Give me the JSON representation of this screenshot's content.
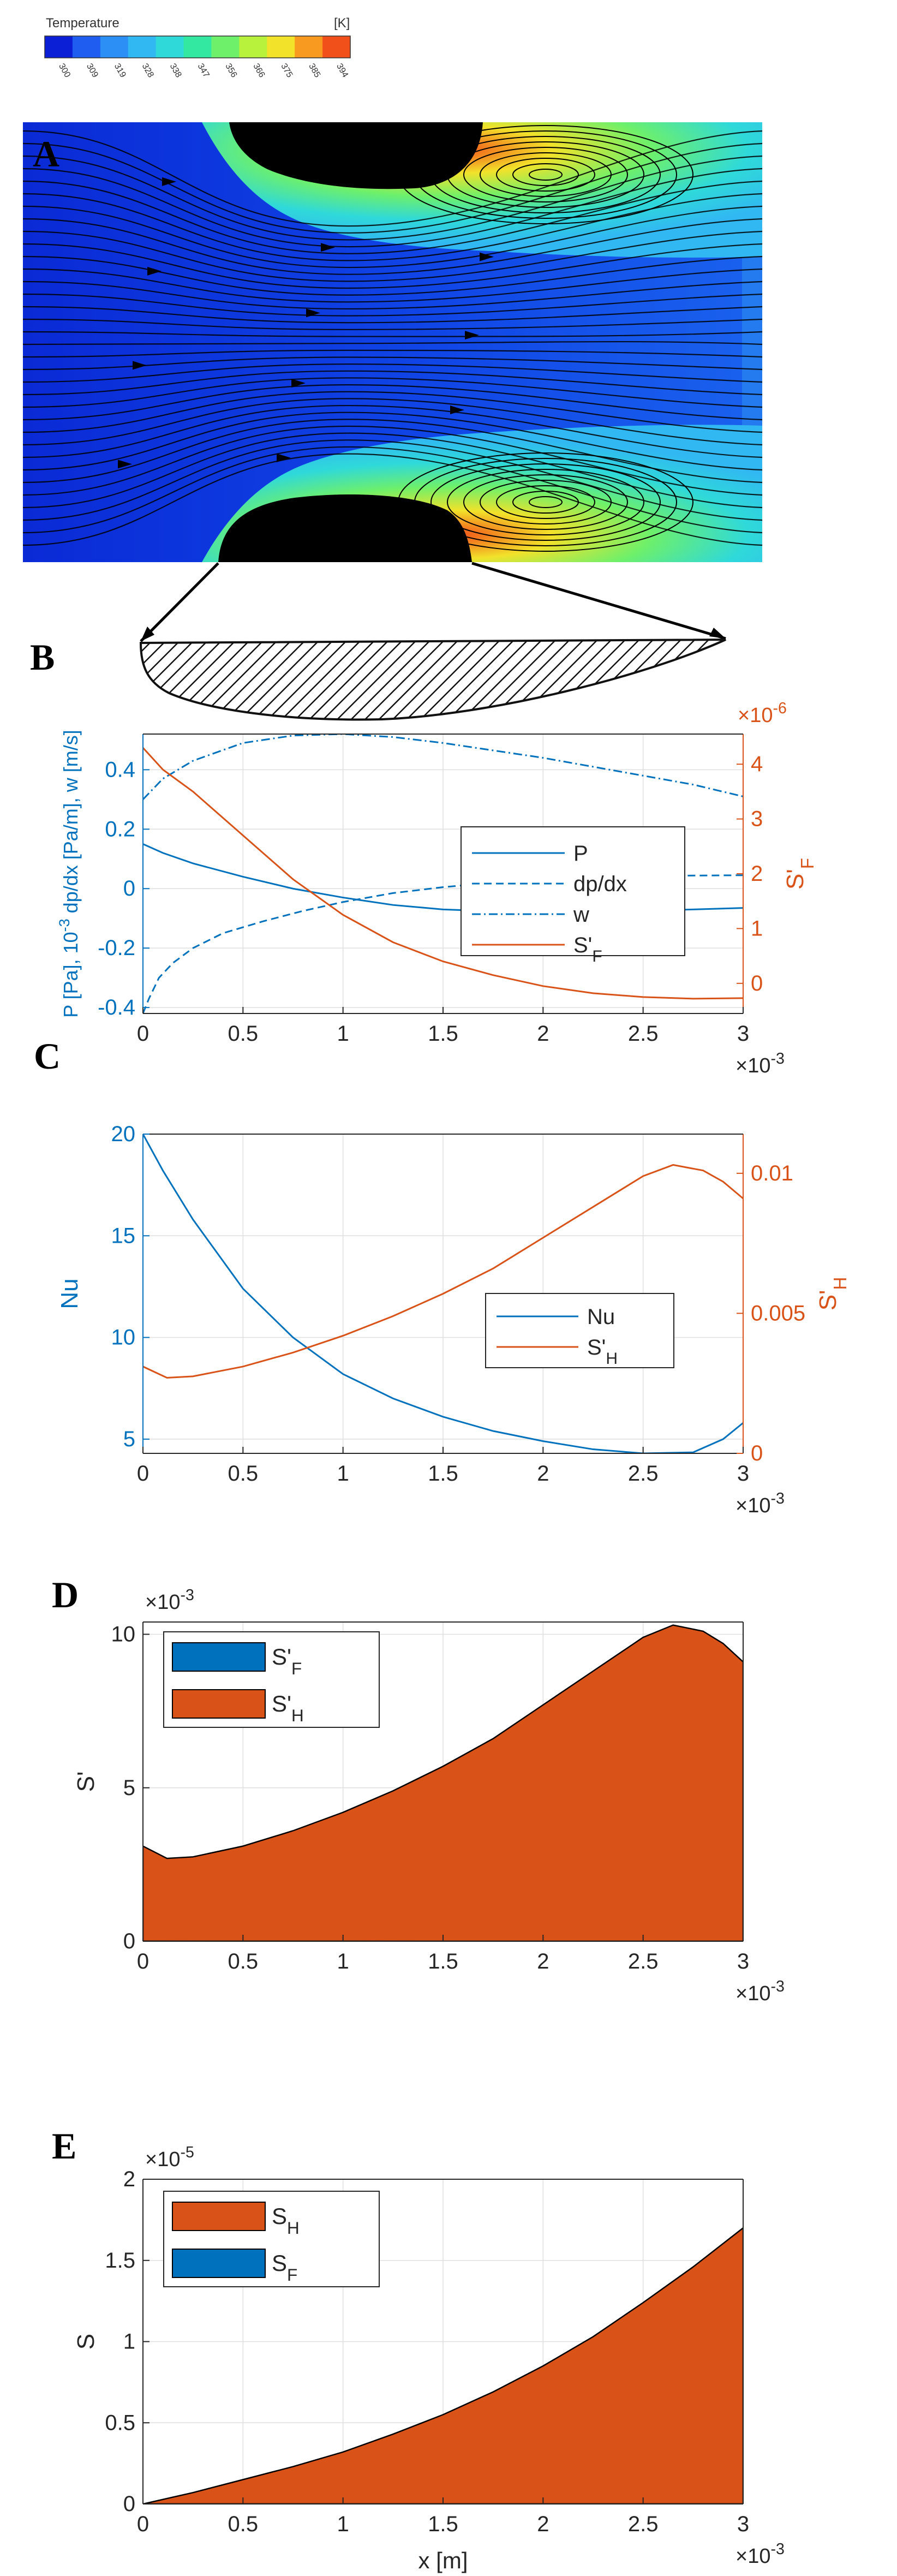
{
  "colorbar": {
    "title": "Temperature",
    "unit": "[K]",
    "ticks": [
      "300",
      "309",
      "319",
      "328",
      "338",
      "347",
      "356",
      "366",
      "375",
      "385",
      "394"
    ],
    "colors": [
      "#0a1fd6",
      "#1f5cf0",
      "#2b8ff5",
      "#31b8f2",
      "#2fd9d9",
      "#33e8a0",
      "#6ef06a",
      "#b8f23c",
      "#f2e22a",
      "#f79a1f",
      "#f2501a"
    ]
  },
  "colors": {
    "blue": "#0072bd",
    "orange": "#d95319",
    "fill_orange": "#d95319",
    "fill_blue": "#0072bd",
    "axis": "#262626",
    "grid": "#dfdfdf"
  },
  "panels": {
    "A": {
      "letter": "A"
    },
    "B": {
      "letter": "B"
    },
    "C": {
      "letter": "C"
    },
    "D": {
      "letter": "D"
    },
    "E": {
      "letter": "E"
    }
  },
  "chart_data": [
    {
      "id": "B",
      "type": "line",
      "ylabel": "P [Pa], 10^-3 dp/dx [Pa/m], w [m/s]",
      "ylabel_parts": [
        "P [Pa], 10",
        "-3",
        " dp/dx [Pa/m], w [m/s]"
      ],
      "y2label": "S'F",
      "xlim": [
        0,
        3
      ],
      "ylim": [
        -0.42,
        0.52
      ],
      "y2lim": [
        -0.55,
        4.55
      ],
      "x_exponent": "×10",
      "x_exponent_power": "-3",
      "y2_exponent": "×10",
      "y2_exponent_power": "-6",
      "xticks": [
        "0",
        "0.5",
        "1",
        "1.5",
        "2",
        "2.5",
        "3"
      ],
      "yticks": [
        "-0.4",
        "-0.2",
        "0",
        "0.2",
        "0.4"
      ],
      "y2ticks": [
        "0",
        "1",
        "2",
        "3",
        "4"
      ],
      "legend": [
        "P",
        "dp/dx",
        "w",
        "S'F"
      ],
      "series": [
        {
          "name": "P",
          "axis": "left",
          "style": "solid",
          "x": [
            0,
            0.1,
            0.25,
            0.5,
            0.75,
            1,
            1.25,
            1.5,
            1.75,
            2,
            2.25,
            2.5,
            2.75,
            3
          ],
          "y": [
            0.15,
            0.12,
            0.085,
            0.04,
            0.0,
            -0.03,
            -0.055,
            -0.07,
            -0.076,
            -0.078,
            -0.077,
            -0.074,
            -0.07,
            -0.065
          ]
        },
        {
          "name": "dp/dx",
          "axis": "left",
          "style": "dashed",
          "x": [
            0,
            0.03,
            0.08,
            0.15,
            0.25,
            0.4,
            0.6,
            0.8,
            1,
            1.25,
            1.5,
            1.75,
            2,
            2.25,
            2.5,
            2.75,
            3
          ],
          "y": [
            -0.42,
            -0.37,
            -0.3,
            -0.25,
            -0.2,
            -0.15,
            -0.11,
            -0.075,
            -0.045,
            -0.015,
            0.005,
            0.02,
            0.03,
            0.038,
            0.042,
            0.044,
            0.045
          ]
        },
        {
          "name": "w",
          "axis": "left",
          "style": "dashdot",
          "x": [
            0,
            0.1,
            0.25,
            0.5,
            0.75,
            1,
            1.25,
            1.5,
            1.75,
            2,
            2.25,
            2.5,
            2.75,
            3
          ],
          "y": [
            0.3,
            0.37,
            0.43,
            0.49,
            0.515,
            0.52,
            0.51,
            0.49,
            0.465,
            0.44,
            0.41,
            0.38,
            0.35,
            0.31
          ]
        },
        {
          "name": "S'F",
          "axis": "right",
          "style": "solid",
          "x": [
            0,
            0.1,
            0.25,
            0.5,
            0.75,
            1,
            1.25,
            1.5,
            1.75,
            2,
            2.25,
            2.5,
            2.75,
            3
          ],
          "y": [
            4.3,
            3.9,
            3.5,
            2.7,
            1.9,
            1.25,
            0.75,
            0.4,
            0.15,
            -0.05,
            -0.18,
            -0.25,
            -0.28,
            -0.27
          ]
        }
      ]
    },
    {
      "id": "C",
      "type": "line",
      "ylabel": "Nu",
      "y2label": "S'H",
      "xlim": [
        0,
        3
      ],
      "ylim": [
        4.3,
        20
      ],
      "y2lim": [
        0,
        0.0114
      ],
      "x_exponent": "×10",
      "x_exponent_power": "-3",
      "xticks": [
        "0",
        "0.5",
        "1",
        "1.5",
        "2",
        "2.5",
        "3"
      ],
      "yticks": [
        "5",
        "10",
        "15",
        "20"
      ],
      "y2ticks": [
        "0",
        "0.005",
        "0.01"
      ],
      "legend": [
        "Nu",
        "S'H"
      ],
      "series": [
        {
          "name": "Nu",
          "axis": "left",
          "style": "solid",
          "x": [
            0,
            0.1,
            0.25,
            0.5,
            0.75,
            1,
            1.25,
            1.5,
            1.75,
            2,
            2.25,
            2.5,
            2.75,
            2.9,
            3
          ],
          "y": [
            20,
            18.2,
            15.8,
            12.4,
            10.0,
            8.2,
            7.0,
            6.1,
            5.4,
            4.9,
            4.5,
            4.3,
            4.35,
            5.0,
            5.8
          ]
        },
        {
          "name": "S'H",
          "axis": "right",
          "style": "solid",
          "x": [
            0,
            0.12,
            0.25,
            0.5,
            0.75,
            1,
            1.25,
            1.5,
            1.75,
            2,
            2.25,
            2.5,
            2.65,
            2.8,
            2.9,
            3
          ],
          "y": [
            0.0031,
            0.0027,
            0.00275,
            0.0031,
            0.0036,
            0.0042,
            0.0049,
            0.0057,
            0.0066,
            0.0077,
            0.0088,
            0.0099,
            0.0103,
            0.0101,
            0.0097,
            0.0091
          ]
        }
      ]
    },
    {
      "id": "D",
      "type": "area",
      "ylabel": "S'",
      "xlim": [
        0,
        3
      ],
      "ylim": [
        0,
        0.0104
      ],
      "x_exponent": "×10",
      "x_exponent_power": "-3",
      "y_exponent": "×10",
      "y_exponent_power": "-3",
      "xticks": [
        "0",
        "0.5",
        "1",
        "1.5",
        "2",
        "2.5",
        "3"
      ],
      "yticks": [
        "0",
        "5",
        "10"
      ],
      "legend": [
        "S'F",
        "S'H"
      ],
      "series": [
        {
          "name": "S'F",
          "x": [
            0,
            1,
            2,
            3
          ],
          "y": [
            4.3e-06,
            1.2e-06,
            -5e-08,
            -2.7e-07
          ]
        },
        {
          "name": "S'H",
          "x": [
            0,
            0.12,
            0.25,
            0.5,
            0.75,
            1,
            1.25,
            1.5,
            1.75,
            2,
            2.25,
            2.5,
            2.65,
            2.8,
            2.9,
            3
          ],
          "y": [
            0.0031,
            0.0027,
            0.00275,
            0.0031,
            0.0036,
            0.0042,
            0.0049,
            0.0057,
            0.0066,
            0.0077,
            0.0088,
            0.0099,
            0.0103,
            0.0101,
            0.0097,
            0.0091
          ]
        }
      ]
    },
    {
      "id": "E",
      "type": "area",
      "ylabel": "S",
      "xlabel": "x [m]",
      "xlim": [
        0,
        3
      ],
      "ylim": [
        0,
        2
      ],
      "x_exponent": "×10",
      "x_exponent_power": "-3",
      "y_exponent": "×10",
      "y_exponent_power": "-5",
      "xticks": [
        "0",
        "0.5",
        "1",
        "1.5",
        "2",
        "2.5",
        "3"
      ],
      "yticks": [
        "0",
        "0.5",
        "1",
        "1.5",
        "2"
      ],
      "legend": [
        "SH",
        "SF"
      ],
      "series": [
        {
          "name": "SH",
          "x": [
            0,
            0.25,
            0.5,
            0.75,
            1,
            1.25,
            1.5,
            1.75,
            2,
            2.25,
            2.5,
            2.75,
            3
          ],
          "y": [
            0,
            0.07,
            0.15,
            0.23,
            0.32,
            0.43,
            0.55,
            0.69,
            0.85,
            1.03,
            1.24,
            1.46,
            1.7
          ]
        },
        {
          "name": "SF",
          "x": [
            0,
            3
          ],
          "y": [
            1.2e-06,
            1.5e-06
          ]
        }
      ]
    }
  ]
}
